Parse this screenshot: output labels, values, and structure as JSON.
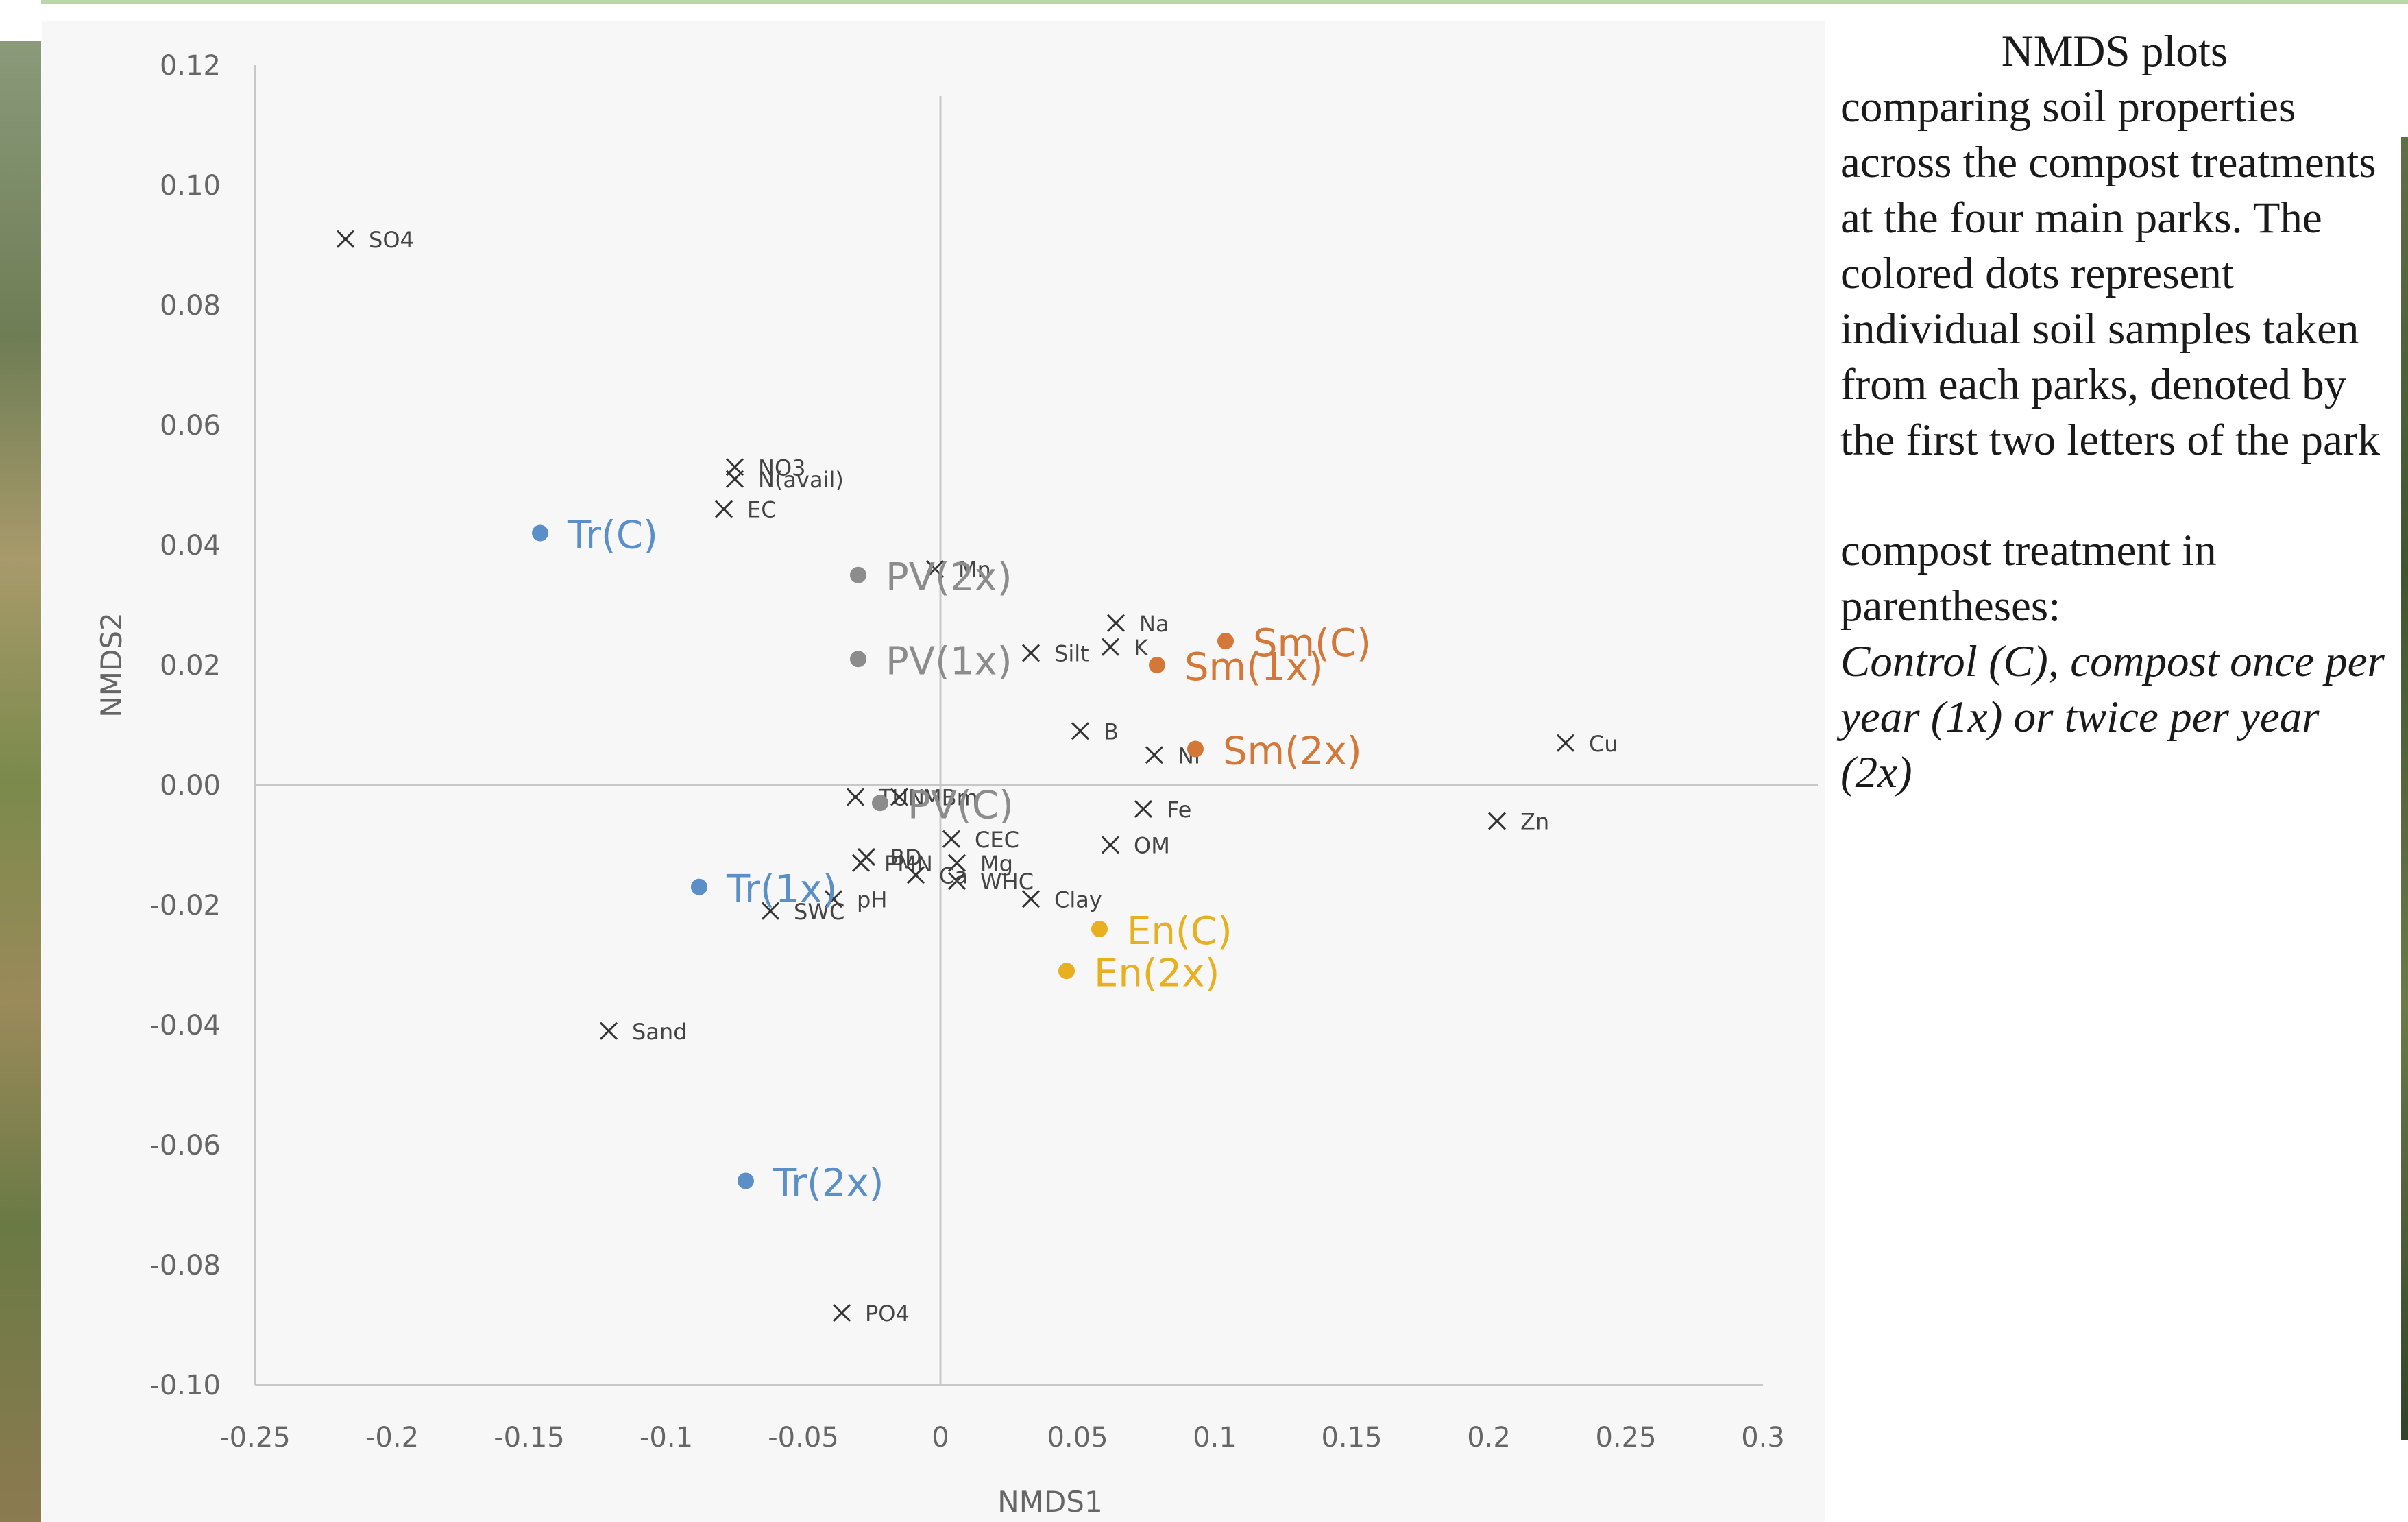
{
  "caption": {
    "title": "NMDS plots",
    "body": "comparing soil properties across the compost treatments at the four main parks. The colored dots represent individual soil samples taken from each parks, denoted by the first two letters of the park",
    "body2": "compost treatment in parentheses:",
    "legend_italic": "Control (C), compost once per year (1x) or twice per year (2x)"
  },
  "chart_data": {
    "type": "scatter",
    "xlabel": "NMDS1",
    "ylabel": "NMDS2",
    "xlim": [
      -0.25,
      0.3
    ],
    "ylim": [
      -0.1,
      0.12
    ],
    "x_ticks": [
      "-0.25",
      "-0.2",
      "-0.15",
      "-0.1",
      "-0.05",
      "0",
      "0.05",
      "0.1",
      "0.15",
      "0.2",
      "0.25",
      "0.3"
    ],
    "y_ticks": [
      "0.12",
      "0.10",
      "0.08",
      "0.06",
      "0.04",
      "0.02",
      "0.00",
      "-0.02",
      "-0.04",
      "-0.06",
      "-0.08",
      "-0.10"
    ],
    "grid": false,
    "colors": {
      "Tr": "#5b8fc7",
      "PV": "#8c8c8c",
      "Sm": "#d4783a",
      "En": "#e8b020",
      "variables": "#333333"
    },
    "series": [
      {
        "group": "Tr",
        "points": [
          {
            "label": "Tr(C)",
            "x": -0.146,
            "y": 0.042
          },
          {
            "label": "Tr(1x)",
            "x": -0.088,
            "y": -0.017
          },
          {
            "label": "Tr(2x)",
            "x": -0.071,
            "y": -0.066
          }
        ]
      },
      {
        "group": "PV",
        "points": [
          {
            "label": "PV(2x)",
            "x": -0.03,
            "y": 0.035
          },
          {
            "label": "PV(1x)",
            "x": -0.03,
            "y": 0.021
          },
          {
            "label": "PV(C)",
            "x": -0.022,
            "y": -0.003
          }
        ]
      },
      {
        "group": "Sm",
        "points": [
          {
            "label": "Sm(C)",
            "x": 0.104,
            "y": 0.024
          },
          {
            "label": "Sm(1x)",
            "x": 0.079,
            "y": 0.02
          },
          {
            "label": "Sm(2x)",
            "x": 0.093,
            "y": 0.006
          }
        ]
      },
      {
        "group": "En",
        "points": [
          {
            "label": "En(C)",
            "x": 0.058,
            "y": -0.024
          },
          {
            "label": "En(2x)",
            "x": 0.046,
            "y": -0.031
          }
        ]
      }
    ],
    "variables": [
      {
        "label": "SO4",
        "x": -0.217,
        "y": 0.091
      },
      {
        "label": "NO3",
        "x": -0.075,
        "y": 0.053
      },
      {
        "label": "N(avail)",
        "x": -0.075,
        "y": 0.051
      },
      {
        "label": "EC",
        "x": -0.079,
        "y": 0.046
      },
      {
        "label": "Mn",
        "x": -0.002,
        "y": 0.036
      },
      {
        "label": "Silt",
        "x": 0.033,
        "y": 0.022
      },
      {
        "label": "Na",
        "x": 0.064,
        "y": 0.027
      },
      {
        "label": "K",
        "x": 0.062,
        "y": 0.023
      },
      {
        "label": "B",
        "x": 0.051,
        "y": 0.009
      },
      {
        "label": "Ni",
        "x": 0.078,
        "y": 0.005
      },
      {
        "label": "Cu",
        "x": 0.228,
        "y": 0.007
      },
      {
        "label": "Zn",
        "x": 0.203,
        "y": -0.006
      },
      {
        "label": "TUN",
        "x": -0.031,
        "y": -0.002
      },
      {
        "label": "MBm",
        "x": -0.015,
        "y": -0.002
      },
      {
        "label": "Fe",
        "x": 0.074,
        "y": -0.004
      },
      {
        "label": "CEC",
        "x": 0.004,
        "y": -0.009
      },
      {
        "label": "OM",
        "x": 0.062,
        "y": -0.01
      },
      {
        "label": "Mg",
        "x": 0.006,
        "y": -0.013
      },
      {
        "label": "Clay",
        "x": 0.033,
        "y": -0.019
      },
      {
        "label": "WHC",
        "x": 0.006,
        "y": -0.016
      },
      {
        "label": "Ca",
        "x": -0.009,
        "y": -0.015
      },
      {
        "label": "pH",
        "x": -0.039,
        "y": -0.019
      },
      {
        "label": "SWC",
        "x": -0.062,
        "y": -0.021
      },
      {
        "label": "BD",
        "x": -0.027,
        "y": -0.012
      },
      {
        "label": "PMN",
        "x": -0.029,
        "y": -0.013
      },
      {
        "label": "Sand",
        "x": -0.121,
        "y": -0.041
      },
      {
        "label": "PO4",
        "x": -0.036,
        "y": -0.088
      }
    ]
  }
}
